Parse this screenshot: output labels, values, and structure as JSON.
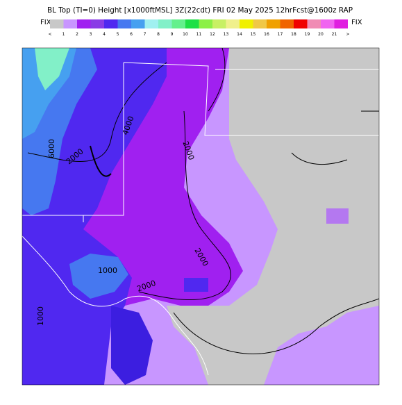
{
  "header": {
    "title": "BL Top (TI=0) Height [x1000ftMSL] 3Z(22cdt) FRI 02 May 2025 12hrFcst@1600z RAP"
  },
  "legend": {
    "left_label": "FIX",
    "right_label": "FIX",
    "colors": [
      "#c8c8c8",
      "#c896ff",
      "#a020f0",
      "#8a3ce6",
      "#5028f0",
      "#4678f0",
      "#46a0f0",
      "#a0f0f0",
      "#82f0c8",
      "#64f08c",
      "#1ee046",
      "#8cf046",
      "#c8f064",
      "#f0f08c",
      "#f0f000",
      "#f0c846",
      "#f0a000",
      "#f06400",
      "#f00000",
      "#f08cb4",
      "#f064f0",
      "#e01ee0"
    ],
    "labels": [
      "<",
      "1",
      "2",
      "3",
      "4",
      "5",
      "6",
      "7",
      "8",
      "9",
      "10",
      "11",
      "12",
      "13",
      "14",
      "15",
      "16",
      "17",
      "18",
      "19",
      "20",
      "21",
      ">"
    ]
  },
  "map": {
    "contour_labels": [
      "4000",
      "6000",
      "2000",
      "2000",
      "2000",
      "1000",
      "2000",
      "1000"
    ]
  }
}
